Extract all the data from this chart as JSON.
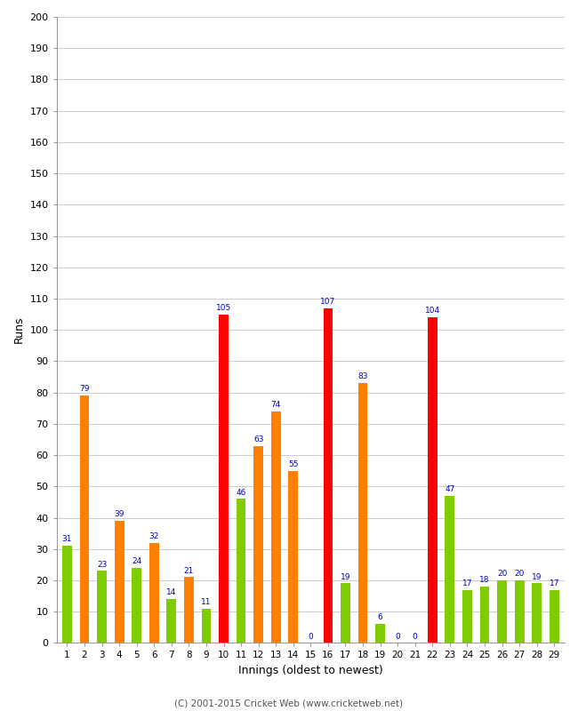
{
  "innings": [
    1,
    2,
    3,
    4,
    5,
    6,
    7,
    8,
    9,
    10,
    11,
    12,
    13,
    14,
    15,
    16,
    17,
    18,
    19,
    20,
    21,
    22,
    23,
    24,
    25,
    26,
    27,
    28,
    29
  ],
  "values": [
    31,
    79,
    23,
    39,
    24,
    32,
    14,
    21,
    11,
    105,
    46,
    63,
    74,
    55,
    0,
    107,
    19,
    83,
    6,
    0,
    0,
    104,
    47,
    17,
    18,
    20,
    20,
    19,
    17
  ],
  "colors": [
    "#80cc00",
    "#ff8000",
    "#80cc00",
    "#ff8000",
    "#80cc00",
    "#ff8000",
    "#80cc00",
    "#ff8000",
    "#80cc00",
    "#ff0000",
    "#80cc00",
    "#ff8000",
    "#ff8000",
    "#ff8000",
    "#80cc00",
    "#ff0000",
    "#80cc00",
    "#ff8000",
    "#80cc00",
    "#80cc00",
    "#80cc00",
    "#ff0000",
    "#80cc00",
    "#80cc00",
    "#80cc00",
    "#80cc00",
    "#80cc00",
    "#80cc00",
    "#80cc00"
  ],
  "xlabel": "Innings (oldest to newest)",
  "ylabel": "Runs",
  "ylim": [
    0,
    200
  ],
  "yticks": [
    0,
    10,
    20,
    30,
    40,
    50,
    60,
    70,
    80,
    90,
    100,
    110,
    120,
    130,
    140,
    150,
    160,
    170,
    180,
    190,
    200
  ],
  "label_color": "#0000cc",
  "footer": "(C) 2001-2015 Cricket Web (www.cricketweb.net)",
  "bg_color": "#ffffff",
  "grid_color": "#cccccc",
  "bar_width": 0.55
}
